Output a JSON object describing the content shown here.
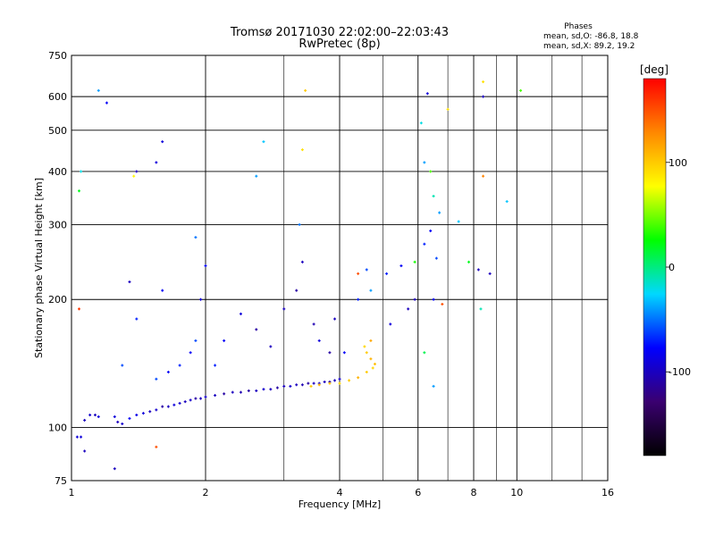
{
  "chart_data": {
    "type": "scatter",
    "title": "Tromsø 20171030 22:02:00–22:03:43",
    "subtitle": "RwPretec (8p)",
    "xlabel": "Frequency [MHz]",
    "ylabel": "Stationary phase Virtual Height [km]",
    "x_scale": "log",
    "y_scale": "log",
    "xlim": [
      1,
      16
    ],
    "ylim": [
      75,
      750
    ],
    "x_ticks": [
      1,
      2,
      4,
      6,
      8,
      10,
      16
    ],
    "y_ticks": [
      75,
      100,
      200,
      300,
      400,
      500,
      600,
      750
    ],
    "grid": true,
    "stats": {
      "heading": "Phases",
      "line1": "mean, sd,O: -86.8, 18.8",
      "line2": "mean, sd,X:  89.2, 19.2"
    },
    "colorbar": {
      "label": "[deg]",
      "range": [
        -180,
        180
      ],
      "ticks": [
        100,
        0,
        -100
      ],
      "colors": [
        "#000000",
        "#3a0070",
        "#0000ff",
        "#00d8ff",
        "#00ff00",
        "#ffff00",
        "#ff8800",
        "#ff0000"
      ]
    },
    "series": [
      {
        "points": [
          [
            1.03,
            95,
            -90
          ],
          [
            1.07,
            104,
            -100
          ],
          [
            1.1,
            107,
            -95
          ],
          [
            1.13,
            107,
            -100
          ],
          [
            1.15,
            106,
            -90
          ],
          [
            1.25,
            106,
            -90
          ],
          [
            1.27,
            103,
            -100
          ],
          [
            1.3,
            102,
            -95
          ],
          [
            1.35,
            105,
            -80
          ],
          [
            1.4,
            107,
            -85
          ],
          [
            1.45,
            108,
            -90
          ],
          [
            1.5,
            109,
            -100
          ],
          [
            1.55,
            110,
            -95
          ],
          [
            1.6,
            112,
            -110
          ],
          [
            1.65,
            112,
            -100
          ],
          [
            1.7,
            113,
            -90
          ],
          [
            1.75,
            114,
            -95
          ],
          [
            1.8,
            115,
            -100
          ],
          [
            1.85,
            116,
            -95
          ],
          [
            1.9,
            117,
            -110
          ],
          [
            1.95,
            117,
            -100
          ],
          [
            2.0,
            118,
            -95
          ],
          [
            2.1,
            119,
            -100
          ],
          [
            2.2,
            120,
            -110
          ],
          [
            2.3,
            121,
            -100
          ],
          [
            2.4,
            121,
            -105
          ],
          [
            2.5,
            122,
            -110
          ],
          [
            2.6,
            122,
            -100
          ],
          [
            2.7,
            123,
            -95
          ],
          [
            2.8,
            123,
            -100
          ],
          [
            2.9,
            124,
            -110
          ],
          [
            3.0,
            125,
            -100
          ],
          [
            3.1,
            125,
            -95
          ],
          [
            3.2,
            126,
            -100
          ],
          [
            3.3,
            126,
            -105
          ],
          [
            3.4,
            127,
            -110
          ],
          [
            3.5,
            127,
            -100
          ],
          [
            3.6,
            127,
            -95
          ],
          [
            3.7,
            128,
            -100
          ],
          [
            3.8,
            128,
            -110
          ],
          [
            3.9,
            129,
            -100
          ],
          [
            4.0,
            130,
            -95
          ],
          [
            3.45,
            125,
            100
          ],
          [
            3.6,
            126,
            110
          ],
          [
            3.8,
            127,
            105
          ],
          [
            4.0,
            127,
            95
          ],
          [
            4.2,
            129,
            100
          ],
          [
            4.4,
            131,
            110
          ],
          [
            4.6,
            135,
            100
          ],
          [
            4.75,
            138,
            95
          ],
          [
            4.8,
            141,
            105
          ],
          [
            4.7,
            145,
            110
          ],
          [
            4.6,
            150,
            100
          ],
          [
            4.55,
            155,
            95
          ],
          [
            4.7,
            160,
            115
          ],
          [
            1.55,
            130,
            -60
          ],
          [
            1.65,
            135,
            -80
          ],
          [
            1.75,
            140,
            -70
          ],
          [
            1.85,
            150,
            -80
          ],
          [
            1.9,
            160,
            -60
          ],
          [
            1.95,
            200,
            -90
          ],
          [
            2.0,
            240,
            -80
          ],
          [
            1.9,
            280,
            -50
          ],
          [
            2.1,
            140,
            -70
          ],
          [
            2.2,
            160,
            -80
          ],
          [
            2.4,
            185,
            -90
          ],
          [
            2.6,
            170,
            -110
          ],
          [
            2.8,
            155,
            -100
          ],
          [
            3.0,
            190,
            -100
          ],
          [
            3.2,
            210,
            -110
          ],
          [
            3.3,
            245,
            -100
          ],
          [
            3.5,
            175,
            -105
          ],
          [
            3.6,
            160,
            -90
          ],
          [
            3.8,
            150,
            -110
          ],
          [
            3.9,
            180,
            -100
          ],
          [
            4.1,
            150,
            -80
          ],
          [
            4.4,
            200,
            -70
          ],
          [
            4.6,
            235,
            -60
          ],
          [
            5.2,
            175,
            -90
          ],
          [
            5.7,
            190,
            -100
          ],
          [
            5.5,
            240,
            -80
          ],
          [
            5.1,
            230,
            -70
          ],
          [
            5.9,
            200,
            -100
          ],
          [
            1.3,
            140,
            -60
          ],
          [
            1.4,
            180,
            -70
          ],
          [
            1.6,
            210,
            -80
          ],
          [
            3.25,
            300,
            -50
          ],
          [
            3.3,
            450,
            90
          ],
          [
            3.35,
            620,
            100
          ],
          [
            2.7,
            470,
            -30
          ],
          [
            2.6,
            390,
            -40
          ],
          [
            1.6,
            470,
            -90
          ],
          [
            1.55,
            420,
            -90
          ],
          [
            1.4,
            400,
            -100
          ],
          [
            1.38,
            390,
            80
          ],
          [
            1.35,
            220,
            -100
          ],
          [
            1.05,
            400,
            -20
          ],
          [
            1.04,
            360,
            20
          ],
          [
            1.15,
            620,
            -40
          ],
          [
            1.2,
            580,
            -80
          ],
          [
            1.05,
            95,
            -90
          ],
          [
            1.07,
            88,
            -100
          ],
          [
            1.04,
            190,
            160
          ],
          [
            1.25,
            80,
            -100
          ],
          [
            1.55,
            90,
            150
          ],
          [
            6.1,
            520,
            -20
          ],
          [
            6.3,
            610,
            -90
          ],
          [
            6.2,
            420,
            -40
          ],
          [
            6.4,
            400,
            40
          ],
          [
            6.5,
            350,
            -10
          ],
          [
            6.7,
            320,
            -40
          ],
          [
            7.0,
            560,
            90
          ],
          [
            7.4,
            305,
            -30
          ],
          [
            7.8,
            245,
            20
          ],
          [
            8.4,
            390,
            130
          ],
          [
            8.4,
            600,
            -100
          ],
          [
            8.4,
            650,
            90
          ],
          [
            8.2,
            235,
            -100
          ],
          [
            8.7,
            230,
            -100
          ],
          [
            9.5,
            340,
            -30
          ],
          [
            10.2,
            620,
            40
          ],
          [
            6.2,
            270,
            -70
          ],
          [
            6.4,
            290,
            -80
          ],
          [
            6.6,
            250,
            -60
          ],
          [
            6.5,
            200,
            -80
          ],
          [
            6.8,
            195,
            150
          ],
          [
            6.2,
            150,
            10
          ],
          [
            6.5,
            125,
            -40
          ],
          [
            8.3,
            190,
            -10
          ],
          [
            5.9,
            245,
            30
          ],
          [
            4.4,
            230,
            150
          ],
          [
            4.7,
            210,
            -40
          ]
        ]
      }
    ]
  }
}
